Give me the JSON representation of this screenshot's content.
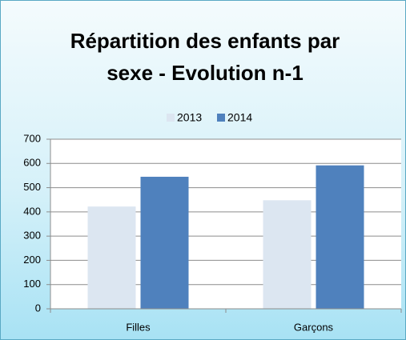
{
  "chart_data": {
    "type": "bar",
    "title": "Répartition des enfants par sexe - Evolution n-1",
    "categories": [
      "Filles",
      "Garçons"
    ],
    "series": [
      {
        "name": "2013",
        "color": "#dce6f1",
        "values": [
          422,
          448
        ]
      },
      {
        "name": "2014",
        "color": "#4f81bd",
        "values": [
          545,
          592
        ]
      }
    ],
    "ylim": [
      0,
      700
    ],
    "yticks": [
      0,
      100,
      200,
      300,
      400,
      500,
      600,
      700
    ],
    "grid": true,
    "legend": "top"
  }
}
